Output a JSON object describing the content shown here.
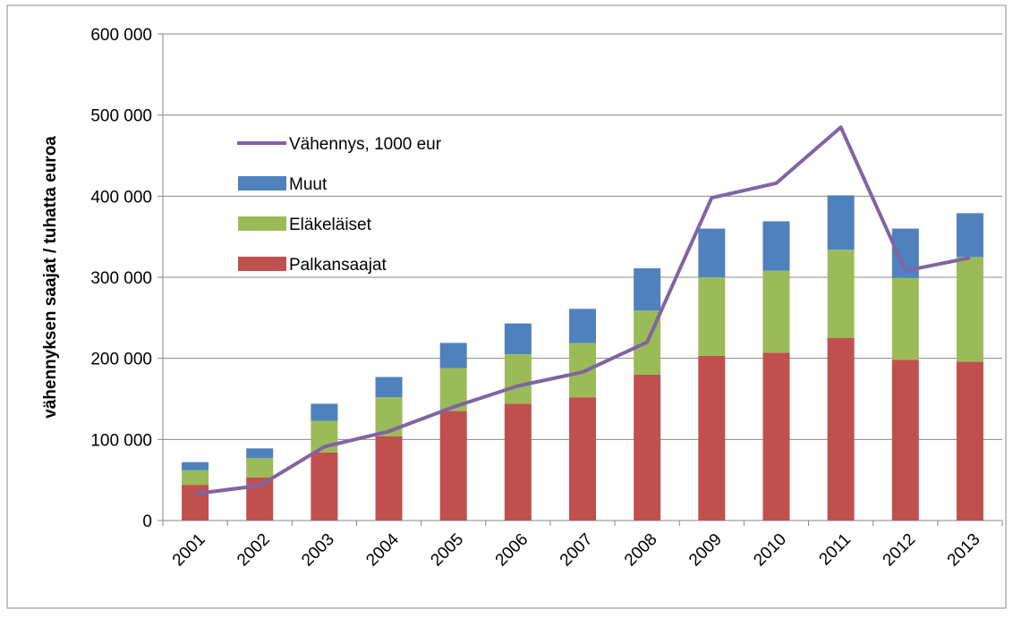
{
  "chart_data": {
    "type": "bar",
    "stacked": true,
    "ylabel": "vähennyksen saajat / tuhatta euroa",
    "categories": [
      "2001",
      "2002",
      "2003",
      "2004",
      "2005",
      "2006",
      "2007",
      "2008",
      "2009",
      "2010",
      "2011",
      "2012",
      "2013"
    ],
    "series": [
      {
        "name": "Palkansaajat",
        "type": "bar",
        "color": "#c0504d",
        "values": [
          44000,
          53000,
          84000,
          104000,
          135000,
          144000,
          152000,
          180000,
          203000,
          207000,
          225000,
          198000,
          196000
        ]
      },
      {
        "name": "Eläkeläiset",
        "type": "bar",
        "color": "#9bbb59",
        "values": [
          18000,
          24000,
          39000,
          48000,
          53000,
          61000,
          67000,
          79000,
          97000,
          101000,
          109000,
          101000,
          129000
        ]
      },
      {
        "name": "Muut",
        "type": "bar",
        "color": "#4f81bd",
        "values": [
          10000,
          12000,
          21000,
          25000,
          31000,
          38000,
          42000,
          52000,
          60000,
          61000,
          67000,
          61000,
          54000
        ]
      },
      {
        "name": "Vähennys, 1000 eur",
        "type": "line",
        "color": "#8064a2",
        "values": [
          33000,
          43000,
          91000,
          110000,
          140000,
          166000,
          183000,
          220000,
          398000,
          416000,
          485000,
          308000,
          324000
        ]
      }
    ],
    "ylim": [
      0,
      600000
    ],
    "yticks": [
      0,
      {
        "value": 100000,
        "label": "100 000"
      },
      {
        "value": 200000,
        "label": "200 000"
      },
      {
        "value": 300000,
        "label": "300 000"
      },
      {
        "value": 400000,
        "label": "400 000"
      },
      {
        "value": 500000,
        "label": "500 000"
      },
      {
        "value": 600000,
        "label": "600 000"
      }
    ],
    "grid": true,
    "legend": "upper left"
  }
}
